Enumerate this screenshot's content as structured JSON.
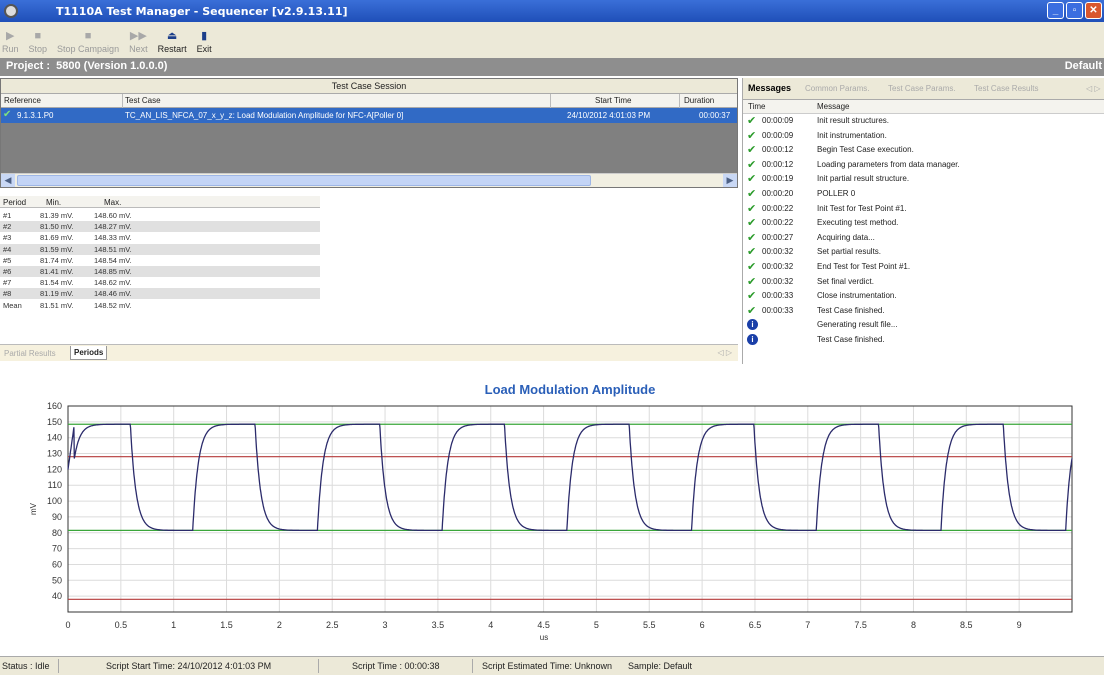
{
  "window": {
    "title": "T1110A Test Manager - Sequencer [v2.9.13.11]"
  },
  "toolbar": [
    {
      "label": "Run",
      "icon": "play-icon",
      "glyph": "▶",
      "enabled": false
    },
    {
      "label": "Stop",
      "icon": "stop-icon",
      "glyph": "■",
      "enabled": false
    },
    {
      "label": "Stop Campaign",
      "icon": "stop-campaign-icon",
      "glyph": "■",
      "enabled": false
    },
    {
      "label": "Next",
      "icon": "next-icon",
      "glyph": "▶▶",
      "enabled": false
    },
    {
      "label": "Restart",
      "icon": "eject-icon",
      "glyph": "⏏",
      "enabled": true
    },
    {
      "label": "Exit",
      "icon": "exit-icon",
      "glyph": "▮",
      "enabled": true
    }
  ],
  "project": {
    "label": "Project :",
    "name": "5800 (Version 1.0.0.0)",
    "right": "Default"
  },
  "session": {
    "caption": "Test Case Session",
    "columns": {
      "reference": "Reference",
      "test_case": "Test Case",
      "start_time": "Start Time",
      "duration": "Duration"
    },
    "row": {
      "reference": "9.1.3.1.P0",
      "test_case": "TC_AN_LIS_NFCA_07_x_y_z: Load Modulation Amplitude for NFC-A[Poller 0]",
      "start_time": "24/10/2012 4:01:03 PM",
      "duration": "00:00:37"
    }
  },
  "periods": {
    "columns": {
      "period": "Period",
      "min": "Min.",
      "max": "Max."
    },
    "rows": [
      {
        "period": "#1",
        "min": "81.39 mV.",
        "max": "148.60 mV."
      },
      {
        "period": "#2",
        "min": "81.50 mV.",
        "max": "148.27 mV."
      },
      {
        "period": "#3",
        "min": "81.69 mV.",
        "max": "148.33 mV."
      },
      {
        "period": "#4",
        "min": "81.59 mV.",
        "max": "148.51 mV."
      },
      {
        "period": "#5",
        "min": "81.74 mV.",
        "max": "148.54 mV."
      },
      {
        "period": "#6",
        "min": "81.41 mV.",
        "max": "148.85 mV."
      },
      {
        "period": "#7",
        "min": "81.54 mV.",
        "max": "148.62 mV."
      },
      {
        "period": "#8",
        "min": "81.19 mV.",
        "max": "148.46 mV."
      },
      {
        "period": "Mean",
        "min": "81.51 mV.",
        "max": "148.52 mV."
      }
    ]
  },
  "bottom_tabs": {
    "partial": "Partial Results",
    "periods": "Periods",
    "nav": "◁ ▷"
  },
  "messages": {
    "tabs": {
      "messages": "Messages",
      "common": "Common Params.",
      "tc_params": "Test Case Params.",
      "tc_results": "Test Case Results",
      "nav": "◁ ▷"
    },
    "columns": {
      "time": "Time",
      "message": "Message"
    },
    "rows": [
      {
        "type": "ok",
        "time": "00:00:09",
        "message": "Init result structures."
      },
      {
        "type": "ok",
        "time": "00:00:09",
        "message": "Init instrumentation."
      },
      {
        "type": "ok",
        "time": "00:00:12",
        "message": "Begin Test Case execution."
      },
      {
        "type": "ok",
        "time": "00:00:12",
        "message": "Loading parameters from data manager."
      },
      {
        "type": "ok",
        "time": "00:00:19",
        "message": "Init partial result structure."
      },
      {
        "type": "ok",
        "time": "00:00:20",
        "message": "POLLER 0"
      },
      {
        "type": "ok",
        "time": "00:00:22",
        "message": "Init Test for Test Point #1."
      },
      {
        "type": "ok",
        "time": "00:00:22",
        "message": "Executing test method."
      },
      {
        "type": "ok",
        "time": "00:00:27",
        "message": "Acquiring data..."
      },
      {
        "type": "ok",
        "time": "00:00:32",
        "message": "Set partial results."
      },
      {
        "type": "ok",
        "time": "00:00:32",
        "message": "End Test for Test Point #1."
      },
      {
        "type": "ok",
        "time": "00:00:32",
        "message": "Set final verdict."
      },
      {
        "type": "ok",
        "time": "00:00:33",
        "message": "Close instrumentation."
      },
      {
        "type": "ok",
        "time": "00:00:33",
        "message": "Test Case finished."
      },
      {
        "type": "info",
        "time": "",
        "message": "Generating result file..."
      },
      {
        "type": "info",
        "time": "",
        "message": "Test Case finished."
      }
    ]
  },
  "chart_data": {
    "type": "line",
    "title": "Load Modulation Amplitude",
    "xlabel": "us",
    "ylabel": "mV",
    "xlim": [
      0,
      9.5
    ],
    "ylim": [
      30,
      160
    ],
    "xticks": [
      "0",
      "0.5",
      "1",
      "1.5",
      "2",
      "2.5",
      "3",
      "3.5",
      "4",
      "4.5",
      "5",
      "5.5",
      "6",
      "6.5",
      "7",
      "7.5",
      "8",
      "8.5",
      "9"
    ],
    "yticks": [
      "40",
      "50",
      "60",
      "70",
      "80",
      "90",
      "100",
      "110",
      "120",
      "130",
      "140",
      "150",
      "160"
    ],
    "grid": true,
    "reference_lines": [
      {
        "value": 148.5,
        "color": "#3aa63a"
      },
      {
        "value": 128,
        "color": "#b53a3a"
      },
      {
        "value": 81.5,
        "color": "#3aa63a"
      },
      {
        "value": 38,
        "color": "#b53a3a"
      }
    ],
    "signal": {
      "color": "#2b2b6b",
      "period_us": 1.18,
      "high": 148.5,
      "low": 81.5,
      "periods": 8
    }
  },
  "status": {
    "state": "Status : Idle",
    "start": "Script Start Time: 24/10/2012 4:01:03 PM",
    "time": "Script Time : 00:00:38",
    "estimated": "Script Estimated Time: Unknown",
    "sample": "Sample: Default"
  }
}
